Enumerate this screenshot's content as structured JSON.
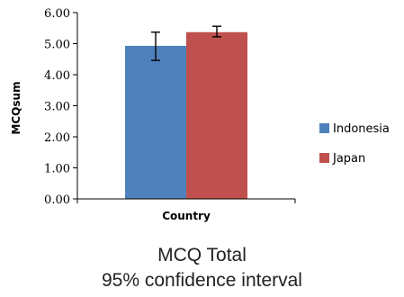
{
  "chart_data": {
    "type": "bar",
    "xlabel": "Country",
    "ylabel": "MCQsum",
    "ylim": [
      0,
      6
    ],
    "y_ticks": [
      "0.00",
      "1.00",
      "2.00",
      "3.00",
      "4.00",
      "5.00",
      "6.00"
    ],
    "grid": false,
    "legend_position": "right",
    "series": [
      {
        "name": "Indonesia",
        "value": 4.93,
        "error_low": 4.46,
        "error_high": 5.37,
        "color": "#4f81bd"
      },
      {
        "name": "Japan",
        "value": 5.37,
        "error_low": 5.22,
        "error_high": 5.56,
        "color": "#c0504d"
      }
    ]
  },
  "caption": {
    "line1": "MCQ Total",
    "line2": "95% confidence interval"
  }
}
